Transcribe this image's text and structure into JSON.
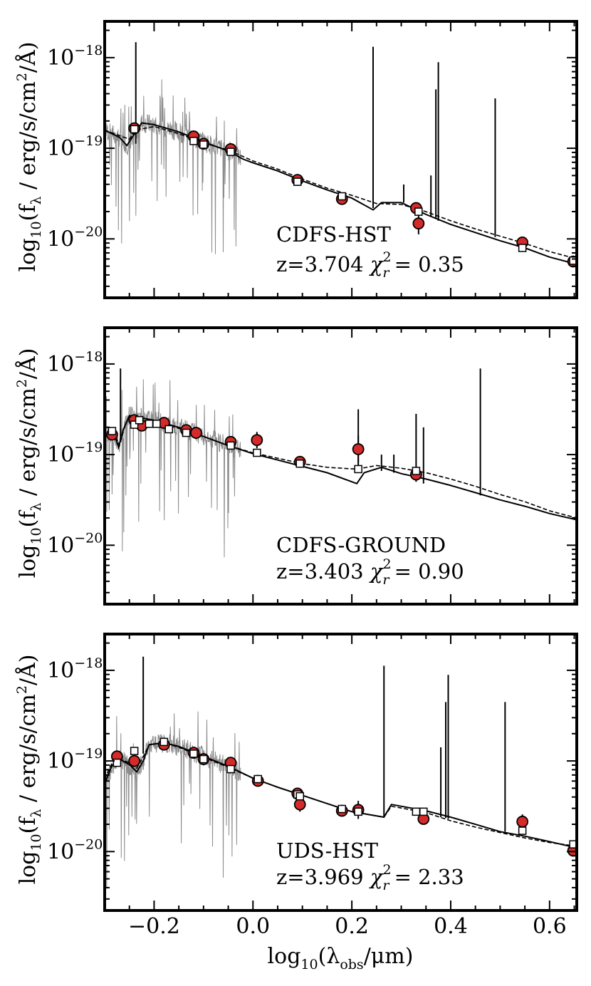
{
  "figure": {
    "xlabel": "log10(λobs/μm)",
    "xlabel_parts": {
      "pre": "log",
      "sub1": "10",
      "mid": "(λ",
      "sub2": "obs",
      "post": "/μm)"
    },
    "ylabel": "log10(fλ / erg/s/cm²/Å)",
    "ylabel_parts": {
      "pre": "log",
      "sub1": "10",
      "mid": "(f",
      "sub2": "λ",
      "post1": " / erg/s/cm",
      "sup": "2",
      "post2": "/Å)"
    },
    "x_ticklabels": [
      "−0.2",
      "0.0",
      "0.2",
      "0.4",
      "0.6"
    ],
    "y_ticklabel_base": "10",
    "y_ticklabel_exps": [
      "−18",
      "−19",
      "−20"
    ],
    "chi_symbol": "χ",
    "chi_sub": "r",
    "chi_sup": "2"
  },
  "chart_data": [
    {
      "type": "scatter",
      "title": "CDFS-HST",
      "redshift_text": "z=3.704",
      "chi2_text": "= 0.35",
      "xlim": [
        -0.3,
        0.655
      ],
      "ylim_log10": [
        -20.65,
        -17.6
      ],
      "observed_points": [
        {
          "x": -0.24,
          "y": -18.78,
          "err": 0.03
        },
        {
          "x": -0.12,
          "y": -18.87,
          "err": 0.03
        },
        {
          "x": -0.1,
          "y": -18.95,
          "err": 0.03
        },
        {
          "x": -0.045,
          "y": -19.01,
          "err": 0.04
        },
        {
          "x": 0.09,
          "y": -19.35,
          "err": 0.04
        },
        {
          "x": 0.18,
          "y": -19.56,
          "err": 0.04
        },
        {
          "x": 0.33,
          "y": -19.66,
          "err": 0.04
        },
        {
          "x": 0.335,
          "y": -19.83,
          "err": 0.12
        },
        {
          "x": 0.545,
          "y": -20.04,
          "err": 0.06
        },
        {
          "x": 0.648,
          "y": -20.25,
          "err": 0.04
        }
      ],
      "model_points": [
        {
          "x": -0.24,
          "y": -18.79
        },
        {
          "x": -0.12,
          "y": -18.92
        },
        {
          "x": -0.1,
          "y": -18.96
        },
        {
          "x": -0.045,
          "y": -19.04
        },
        {
          "x": 0.09,
          "y": -19.37
        },
        {
          "x": 0.18,
          "y": -19.53
        },
        {
          "x": 0.335,
          "y": -19.7
        },
        {
          "x": 0.545,
          "y": -20.1
        },
        {
          "x": 0.648,
          "y": -20.24
        }
      ],
      "continuum_solid": [
        [
          -0.3,
          -18.8
        ],
        [
          -0.27,
          -18.88
        ],
        [
          -0.255,
          -18.97
        ],
        [
          -0.242,
          -18.86
        ],
        [
          -0.225,
          -18.72
        ],
        [
          -0.2,
          -18.74
        ],
        [
          -0.15,
          -18.82
        ],
        [
          -0.1,
          -18.93
        ],
        [
          -0.05,
          -19.03
        ],
        [
          -0.02,
          -19.12
        ],
        [
          0.0,
          -19.16
        ],
        [
          0.05,
          -19.25
        ],
        [
          0.1,
          -19.36
        ],
        [
          0.15,
          -19.46
        ],
        [
          0.2,
          -19.55
        ],
        [
          0.243,
          -19.68
        ],
        [
          0.26,
          -19.6
        ],
        [
          0.3,
          -19.6
        ],
        [
          0.35,
          -19.73
        ],
        [
          0.4,
          -19.84
        ],
        [
          0.45,
          -19.93
        ],
        [
          0.5,
          -20.02
        ],
        [
          0.55,
          -20.1
        ],
        [
          0.6,
          -20.2
        ],
        [
          0.655,
          -20.28
        ]
      ],
      "continuum_dashed": [
        [
          -0.3,
          -18.8
        ],
        [
          -0.25,
          -18.9
        ],
        [
          -0.238,
          -18.8
        ],
        [
          -0.2,
          -18.76
        ],
        [
          -0.15,
          -18.84
        ],
        [
          -0.1,
          -18.94
        ],
        [
          -0.05,
          -19.02
        ],
        [
          0.0,
          -19.14
        ],
        [
          0.05,
          -19.23
        ],
        [
          0.1,
          -19.34
        ],
        [
          0.15,
          -19.44
        ],
        [
          0.2,
          -19.52
        ],
        [
          0.25,
          -19.61
        ],
        [
          0.3,
          -19.62
        ],
        [
          0.35,
          -19.7
        ],
        [
          0.4,
          -19.8
        ],
        [
          0.45,
          -19.89
        ],
        [
          0.5,
          -19.97
        ],
        [
          0.55,
          -20.05
        ],
        [
          0.6,
          -20.14
        ],
        [
          0.655,
          -20.22
        ]
      ],
      "emission_lines": [
        [
          -0.237,
          -17.83,
          -18.95
        ],
        [
          0.243,
          -17.88,
          -19.66
        ],
        [
          0.305,
          -19.4,
          -19.6
        ],
        [
          0.36,
          -19.3,
          -19.75
        ],
        [
          0.37,
          -18.35,
          -19.78
        ],
        [
          0.375,
          -18.05,
          -19.8
        ],
        [
          0.49,
          -18.45,
          -19.98
        ]
      ],
      "observed_spectrum_range": [
        -0.298,
        -0.025
      ]
    },
    {
      "type": "scatter",
      "title": "CDFS-GROUND",
      "redshift_text": "z=3.403",
      "chi2_text": "= 0.90",
      "xlim": [
        -0.3,
        0.655
      ],
      "ylim_log10": [
        -20.65,
        -17.6
      ],
      "observed_points": [
        {
          "x": -0.285,
          "y": -18.78,
          "err": 0.06
        },
        {
          "x": -0.24,
          "y": -18.62,
          "err": 0.05
        },
        {
          "x": -0.225,
          "y": -18.68,
          "err": 0.04
        },
        {
          "x": -0.18,
          "y": -18.65,
          "err": 0.04
        },
        {
          "x": -0.135,
          "y": -18.73,
          "err": 0.04
        },
        {
          "x": -0.115,
          "y": -18.76,
          "err": 0.05
        },
        {
          "x": -0.045,
          "y": -18.86,
          "err": 0.05
        },
        {
          "x": 0.008,
          "y": -18.84,
          "err": 0.09
        },
        {
          "x": 0.095,
          "y": -19.08,
          "err": 0.06
        },
        {
          "x": 0.213,
          "y": -18.94,
          "err": 0.15
        },
        {
          "x": 0.33,
          "y": -19.22,
          "err": 0.07
        }
      ],
      "model_points": [
        {
          "x": -0.285,
          "y": -18.74
        },
        {
          "x": -0.24,
          "y": -18.67
        },
        {
          "x": -0.23,
          "y": -18.62
        },
        {
          "x": -0.21,
          "y": -18.66
        },
        {
          "x": -0.195,
          "y": -18.66
        },
        {
          "x": -0.17,
          "y": -18.72
        },
        {
          "x": -0.135,
          "y": -18.76
        },
        {
          "x": -0.045,
          "y": -18.9
        },
        {
          "x": 0.008,
          "y": -18.98
        },
        {
          "x": 0.095,
          "y": -19.1
        },
        {
          "x": 0.213,
          "y": -19.16
        },
        {
          "x": 0.33,
          "y": -19.18
        }
      ],
      "continuum_solid": [
        [
          -0.3,
          -18.8
        ],
        [
          -0.28,
          -18.78
        ],
        [
          -0.272,
          -18.92
        ],
        [
          -0.262,
          -18.72
        ],
        [
          -0.25,
          -18.57
        ],
        [
          -0.2,
          -18.62
        ],
        [
          -0.15,
          -18.7
        ],
        [
          -0.1,
          -18.8
        ],
        [
          -0.05,
          -18.9
        ],
        [
          0.0,
          -18.99
        ],
        [
          0.05,
          -19.06
        ],
        [
          0.1,
          -19.13
        ],
        [
          0.15,
          -19.2
        ],
        [
          0.21,
          -19.32
        ],
        [
          0.225,
          -19.2
        ],
        [
          0.26,
          -19.14
        ],
        [
          0.3,
          -19.21
        ],
        [
          0.35,
          -19.27
        ],
        [
          0.4,
          -19.34
        ],
        [
          0.45,
          -19.42
        ],
        [
          0.5,
          -19.5
        ],
        [
          0.55,
          -19.57
        ],
        [
          0.6,
          -19.65
        ],
        [
          0.655,
          -19.72
        ]
      ],
      "continuum_dashed": [
        [
          -0.3,
          -18.8
        ],
        [
          -0.28,
          -18.78
        ],
        [
          -0.27,
          -18.9
        ],
        [
          -0.26,
          -18.7
        ],
        [
          -0.25,
          -18.57
        ],
        [
          -0.2,
          -18.62
        ],
        [
          -0.15,
          -18.71
        ],
        [
          -0.1,
          -18.8
        ],
        [
          -0.05,
          -18.9
        ],
        [
          0.0,
          -18.98
        ],
        [
          0.05,
          -19.04
        ],
        [
          0.1,
          -19.1
        ],
        [
          0.15,
          -19.14
        ],
        [
          0.21,
          -19.16
        ],
        [
          0.25,
          -19.12
        ],
        [
          0.3,
          -19.15
        ],
        [
          0.35,
          -19.2
        ],
        [
          0.4,
          -19.27
        ],
        [
          0.45,
          -19.35
        ],
        [
          0.5,
          -19.44
        ],
        [
          0.55,
          -19.52
        ],
        [
          0.6,
          -19.62
        ],
        [
          0.655,
          -19.7
        ]
      ],
      "emission_lines": [
        [
          -0.268,
          -18.05,
          -18.85
        ],
        [
          0.213,
          -18.5,
          -19.2
        ],
        [
          0.26,
          -19.0,
          -19.18
        ],
        [
          0.285,
          -19.0,
          -19.2
        ],
        [
          0.33,
          -18.55,
          -19.3
        ],
        [
          0.345,
          -18.7,
          -19.32
        ],
        [
          0.46,
          -18.05,
          -19.45
        ]
      ],
      "observed_spectrum_range": [
        -0.298,
        -0.025
      ]
    },
    {
      "type": "scatter",
      "title": "UDS-HST",
      "redshift_text": "z=3.969",
      "chi2_text": "= 2.33",
      "xlim": [
        -0.3,
        0.655
      ],
      "ylim_log10": [
        -20.65,
        -17.6
      ],
      "observed_points": [
        {
          "x": -0.275,
          "y": -18.95,
          "err": 0.05
        },
        {
          "x": -0.24,
          "y": -19.0,
          "err": 0.06
        },
        {
          "x": -0.18,
          "y": -18.82,
          "err": 0.04
        },
        {
          "x": -0.12,
          "y": -18.91,
          "err": 0.03
        },
        {
          "x": -0.1,
          "y": -18.98,
          "err": 0.03
        },
        {
          "x": -0.045,
          "y": -19.02,
          "err": 0.04
        },
        {
          "x": 0.01,
          "y": -19.22,
          "err": 0.04
        },
        {
          "x": 0.09,
          "y": -19.36,
          "err": 0.05
        },
        {
          "x": 0.095,
          "y": -19.48,
          "err": 0.08
        },
        {
          "x": 0.18,
          "y": -19.55,
          "err": 0.05
        },
        {
          "x": 0.213,
          "y": -19.54,
          "err": 0.1
        },
        {
          "x": 0.345,
          "y": -19.64,
          "err": 0.05
        },
        {
          "x": 0.545,
          "y": -19.67,
          "err": 0.08
        },
        {
          "x": 0.648,
          "y": -19.99,
          "err": 0.05
        }
      ],
      "model_points": [
        {
          "x": -0.275,
          "y": -19.02
        },
        {
          "x": -0.24,
          "y": -18.89
        },
        {
          "x": -0.18,
          "y": -18.79
        },
        {
          "x": -0.12,
          "y": -18.92
        },
        {
          "x": -0.1,
          "y": -18.98
        },
        {
          "x": -0.045,
          "y": -19.09
        },
        {
          "x": 0.01,
          "y": -19.2
        },
        {
          "x": 0.09,
          "y": -19.37
        },
        {
          "x": 0.095,
          "y": -19.39
        },
        {
          "x": 0.18,
          "y": -19.53
        },
        {
          "x": 0.213,
          "y": -19.56
        },
        {
          "x": 0.33,
          "y": -19.56
        },
        {
          "x": 0.345,
          "y": -19.56
        },
        {
          "x": 0.545,
          "y": -19.77
        },
        {
          "x": 0.648,
          "y": -19.92
        }
      ],
      "continuum_solid": [
        [
          -0.3,
          -19.25
        ],
        [
          -0.285,
          -19.05
        ],
        [
          -0.27,
          -18.98
        ],
        [
          -0.25,
          -19.04
        ],
        [
          -0.235,
          -19.12
        ],
        [
          -0.222,
          -19.0
        ],
        [
          -0.21,
          -18.82
        ],
        [
          -0.18,
          -18.8
        ],
        [
          -0.15,
          -18.84
        ],
        [
          -0.1,
          -18.95
        ],
        [
          -0.05,
          -19.06
        ],
        [
          0.0,
          -19.19
        ],
        [
          0.05,
          -19.29
        ],
        [
          0.1,
          -19.38
        ],
        [
          0.15,
          -19.47
        ],
        [
          0.2,
          -19.56
        ],
        [
          0.265,
          -19.62
        ],
        [
          0.28,
          -19.48
        ],
        [
          0.3,
          -19.5
        ],
        [
          0.35,
          -19.55
        ],
        [
          0.4,
          -19.62
        ],
        [
          0.45,
          -19.7
        ],
        [
          0.5,
          -19.78
        ],
        [
          0.55,
          -19.83
        ],
        [
          0.6,
          -19.89
        ],
        [
          0.655,
          -19.96
        ]
      ],
      "continuum_dashed": [
        [
          -0.3,
          -19.2
        ],
        [
          -0.285,
          -19.02
        ],
        [
          -0.27,
          -18.98
        ],
        [
          -0.25,
          -19.02
        ],
        [
          -0.235,
          -19.08
        ],
        [
          -0.222,
          -18.95
        ],
        [
          -0.21,
          -18.82
        ],
        [
          -0.18,
          -18.8
        ],
        [
          -0.15,
          -18.85
        ],
        [
          -0.1,
          -18.96
        ],
        [
          -0.05,
          -19.07
        ],
        [
          0.0,
          -19.19
        ],
        [
          0.05,
          -19.29
        ],
        [
          0.1,
          -19.38
        ],
        [
          0.15,
          -19.47
        ],
        [
          0.2,
          -19.56
        ],
        [
          0.265,
          -19.62
        ],
        [
          0.28,
          -19.5
        ],
        [
          0.3,
          -19.52
        ],
        [
          0.35,
          -19.57
        ],
        [
          0.4,
          -19.66
        ],
        [
          0.45,
          -19.73
        ],
        [
          0.5,
          -19.79
        ],
        [
          0.55,
          -19.85
        ],
        [
          0.6,
          -19.9
        ],
        [
          0.655,
          -19.94
        ]
      ],
      "emission_lines": [
        [
          -0.222,
          -17.85,
          -18.92
        ],
        [
          0.265,
          -17.95,
          -19.62
        ],
        [
          0.38,
          -18.85,
          -19.62
        ],
        [
          0.39,
          -18.35,
          -19.63
        ],
        [
          0.395,
          -18.05,
          -19.64
        ],
        [
          0.51,
          -18.35,
          -19.78
        ]
      ],
      "observed_spectrum_range": [
        -0.298,
        -0.025
      ]
    }
  ]
}
